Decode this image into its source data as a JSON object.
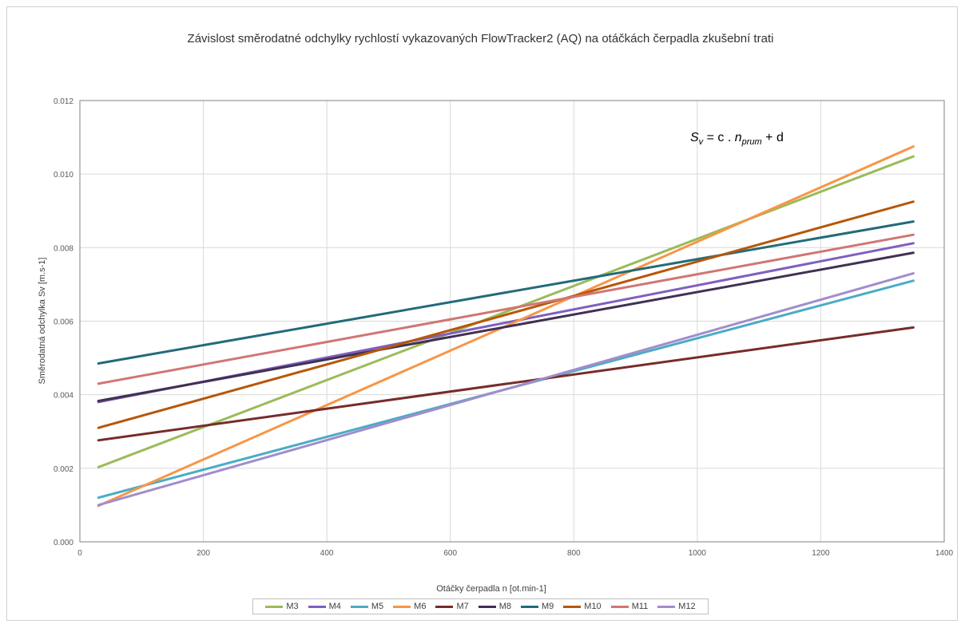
{
  "chart_data": {
    "type": "line",
    "title": "Závislost směrodatné odchylky rychlostí vykazovaných FlowTracker2 (AQ) na otáčkách čerpadla zkušební trati",
    "xlabel": "Otáčky čerpadla n [ot.min-1]",
    "ylabel": "Směrodatná odchylka Sv [m.s-1]",
    "xlim": [
      0,
      1400
    ],
    "ylim": [
      0,
      0.012
    ],
    "x_ticks": [
      "0",
      "200",
      "400",
      "600",
      "800",
      "1000",
      "1200",
      "1400"
    ],
    "y_ticks": [
      "0.000",
      "0.002",
      "0.004",
      "0.006",
      "0.008",
      "0.010",
      "0.012"
    ],
    "grid": true,
    "legend_position": "bottom",
    "annotation": "S_v = c . n_prum + d",
    "series": [
      {
        "name": "M3",
        "color": "#9BBB59",
        "x": [
          30,
          1350
        ],
        "y": [
          0.00203,
          0.01048
        ]
      },
      {
        "name": "M4",
        "color": "#7F5FBF",
        "x": [
          30,
          1350
        ],
        "y": [
          0.0038,
          0.00812
        ]
      },
      {
        "name": "M5",
        "color": "#4BACC6",
        "x": [
          30,
          1350
        ],
        "y": [
          0.0012,
          0.0071
        ]
      },
      {
        "name": "M6",
        "color": "#F79646",
        "x": [
          30,
          1350
        ],
        "y": [
          0.00098,
          0.01075
        ]
      },
      {
        "name": "M7",
        "color": "#772C2A",
        "x": [
          30,
          1350
        ],
        "y": [
          0.00276,
          0.00583
        ]
      },
      {
        "name": "M8",
        "color": "#403152",
        "x": [
          30,
          1350
        ],
        "y": [
          0.00383,
          0.00786
        ]
      },
      {
        "name": "M9",
        "color": "#236B7A",
        "x": [
          30,
          1350
        ],
        "y": [
          0.00485,
          0.00871
        ]
      },
      {
        "name": "M10",
        "color": "#B65708",
        "x": [
          30,
          1350
        ],
        "y": [
          0.0031,
          0.00925
        ]
      },
      {
        "name": "M11",
        "color": "#D07674",
        "x": [
          30,
          1350
        ],
        "y": [
          0.0043,
          0.00835
        ]
      },
      {
        "name": "M12",
        "color": "#A28DCB",
        "x": [
          30,
          1350
        ],
        "y": [
          0.001,
          0.0073
        ]
      }
    ]
  }
}
